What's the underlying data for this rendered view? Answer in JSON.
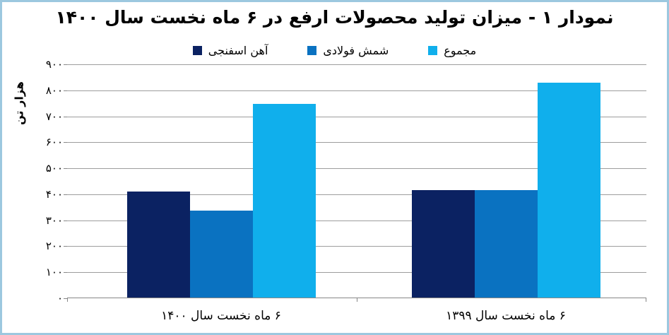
{
  "title": "نمودار ۱ - میزان تولید محصولات ارفع در ۶ ماه نخست سال ۱۴۰۰",
  "legend": [
    {
      "label": "آهن اسفنجی",
      "color": "#0B2262"
    },
    {
      "label": "شمش فولادی",
      "color": "#0A72C1"
    },
    {
      "label": "مجموع",
      "color": "#10AFEC"
    }
  ],
  "y_axis": {
    "title": "هزار تن",
    "ticks": [
      "۹۰۰",
      "۸۰۰",
      "۷۰۰",
      "۶۰۰",
      "۵۰۰",
      "۴۰۰",
      "۳۰۰",
      "۲۰۰",
      "۱۰۰",
      "۰"
    ],
    "min": 0,
    "max": 900,
    "step": 100
  },
  "chart_data": {
    "type": "bar",
    "categories": [
      "۶ ماه نخست سال ۱۴۰۰",
      "۶ ماه نخست سال ۱۳۹۹"
    ],
    "series": [
      {
        "name": "آهن اسفنجی",
        "color": "#0B2262",
        "values": [
          410,
          415
        ]
      },
      {
        "name": "شمش فولادی",
        "color": "#0A72C1",
        "values": [
          337,
          415
        ]
      },
      {
        "name": "مجموع",
        "color": "#10AFEC",
        "values": [
          747,
          830
        ]
      }
    ],
    "title": "نمودار ۱ - میزان تولید محصولات ارفع در ۶ ماه نخست سال ۱۴۰۰",
    "xlabel": "",
    "ylabel": "هزار تن",
    "ylim": [
      0,
      900
    ],
    "grid": true,
    "legend_position": "top",
    "direction": "rtl"
  },
  "colors": {
    "border": "#9CC8DF",
    "gridline": "#9D9D9D",
    "axis": "#878787",
    "text": "#000000",
    "background": "#FFFFFF"
  }
}
